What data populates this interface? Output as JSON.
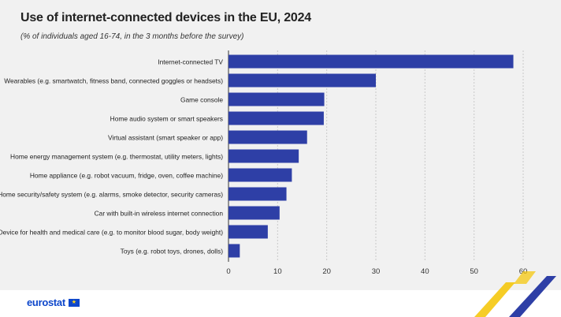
{
  "chart_data": {
    "type": "bar",
    "orientation": "horizontal",
    "title": "Use of internet-connected devices in the EU, 2024",
    "subtitle": "(% of individuals aged 16-74, in the 3 months before the survey)",
    "categories": [
      "Internet-connected TV",
      "Wearables (e.g. smartwatch, fitness band, connected goggles or headsets)",
      "Game console",
      "Home audio system or smart speakers",
      "Virtual assistant (smart speaker or app)",
      "Home energy management system (e.g. thermostat, utility meters, lights)",
      "Home appliance (e.g. robot vacuum, fridge, oven, coffee machine)",
      "Home security/safety system (e.g. alarms, smoke detector, security cameras)",
      "Car with built-in wireless internet connection",
      "Device for health and medical care (e.g. to monitor blood sugar, body weight)",
      "Toys (e.g. robot toys, drones, dolls)"
    ],
    "values": [
      58,
      30,
      19.5,
      19.4,
      16,
      14.3,
      12.9,
      11.8,
      10.4,
      8,
      2.3
    ],
    "xlim": [
      0,
      60
    ],
    "xticks": [
      "0",
      "10",
      "20",
      "30",
      "40",
      "50",
      "60"
    ],
    "grid": true,
    "bar_color": "#2e3fa6"
  },
  "footer": {
    "brand": "eurostat"
  }
}
